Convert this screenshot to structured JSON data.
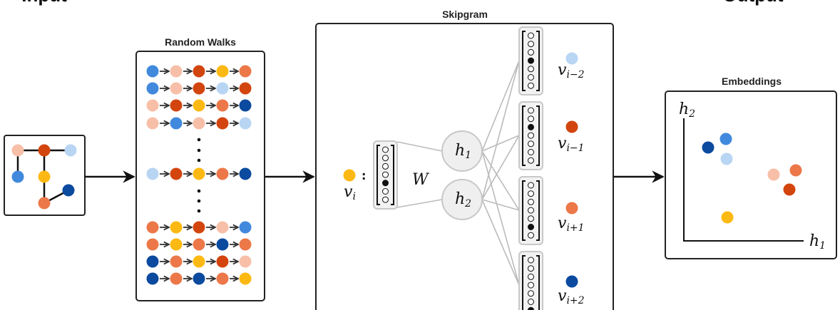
{
  "titles": {
    "input": "Input",
    "output": "Output",
    "random_walks": "Random Walks",
    "skipgram": "Skipgram",
    "embeddings": "Embeddings"
  },
  "palette": {
    "B": "#4189dd",
    "P": "#f8bfa8",
    "R": "#d3450f",
    "Y": "#fdb913",
    "O": "#ec7849",
    "L": "#b8d5f3",
    "D": "#0b4a9e"
  },
  "graph": {
    "nodes": [
      "P",
      "R",
      "L",
      "B",
      "Y",
      "D",
      "O"
    ],
    "edges": [
      [
        0,
        1
      ],
      [
        1,
        2
      ],
      [
        0,
        3
      ],
      [
        1,
        4
      ],
      [
        4,
        6
      ],
      [
        6,
        5
      ]
    ]
  },
  "walks": {
    "top": [
      "BPRYO",
      "BPRLR",
      "PRYOD",
      "PBPRL"
    ],
    "middle": [
      "LRYOD"
    ],
    "bottom": [
      "OYRPB",
      "OYODO",
      "DOYRP",
      "DODOY"
    ]
  },
  "skipgram": {
    "input": {
      "color": "Y",
      "base": "v",
      "sub": "i",
      "colon": ":",
      "active_index": 4
    },
    "weight_label": "W",
    "hidden": [
      {
        "base": "h",
        "sub": "1"
      },
      {
        "base": "h",
        "sub": "2"
      }
    ],
    "outputs": [
      {
        "color": "L",
        "base": "v",
        "sub": "i−2",
        "active_index": 3
      },
      {
        "color": "R",
        "base": "v",
        "sub": "i−1",
        "active_index": 2
      },
      {
        "color": "O",
        "base": "v",
        "sub": "i+1",
        "active_index": 5
      },
      {
        "color": "D",
        "base": "v",
        "sub": "i+2",
        "active_index": 6
      }
    ]
  },
  "embeddings": {
    "x_axis": {
      "base": "h",
      "sub": "1"
    },
    "y_axis": {
      "base": "h",
      "sub": "2"
    },
    "points": [
      "D",
      "B",
      "L",
      "P",
      "O",
      "R",
      "Y"
    ]
  }
}
